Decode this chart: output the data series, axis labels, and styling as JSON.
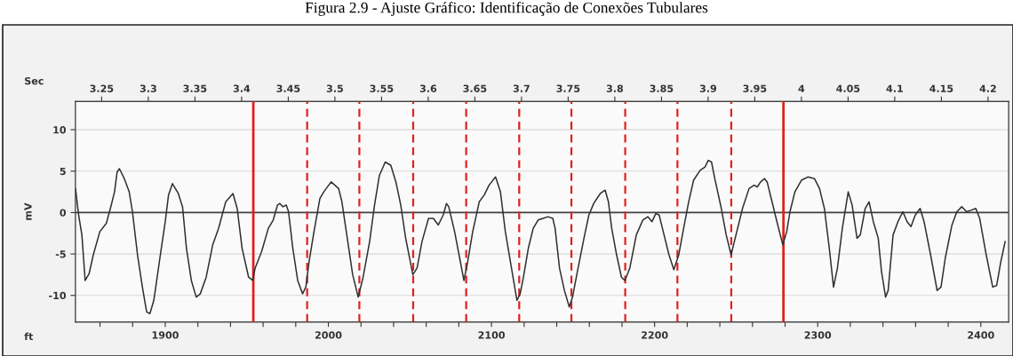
{
  "chart_data": {
    "type": "line",
    "title": "Figura 2.9 - Ajuste Gráfico: Identificação de Conexões Tubulares",
    "xlabel": "ft",
    "x2label": "Sec",
    "ylabel": "mV",
    "xlim": [
      1845,
      2417
    ],
    "ylim": [
      -13.2,
      13.4
    ],
    "xticks": [
      {
        "value": 1860,
        "label": null
      },
      {
        "value": 1880,
        "label": null
      },
      1900,
      {
        "value": 1920,
        "label": null
      },
      {
        "value": 1940,
        "label": null
      },
      {
        "value": 1960,
        "label": null
      },
      {
        "value": 1980,
        "label": null
      },
      2000,
      {
        "value": 2020,
        "label": null
      },
      {
        "value": 2040,
        "label": null
      },
      {
        "value": 2060,
        "label": null
      },
      {
        "value": 2080,
        "label": null
      },
      2100,
      {
        "value": 2120,
        "label": null
      },
      {
        "value": 2140,
        "label": null
      },
      {
        "value": 2160,
        "label": null
      },
      {
        "value": 2180,
        "label": null
      },
      2200,
      {
        "value": 2220,
        "label": null
      },
      {
        "value": 2240,
        "label": null
      },
      {
        "value": 2260,
        "label": null
      },
      {
        "value": 2280,
        "label": null
      },
      2300,
      {
        "value": 2320,
        "label": null
      },
      {
        "value": 2340,
        "label": null
      },
      {
        "value": 2360,
        "label": null
      },
      {
        "value": 2380,
        "label": null
      },
      2400
    ],
    "yticks": [
      -10,
      -5,
      0,
      5,
      10
    ],
    "x2lim": [
      3.222,
      4.222
    ],
    "x2ticks": [
      3.25,
      3.3,
      3.35,
      3.4,
      3.45,
      3.5,
      3.55,
      3.6,
      3.65,
      3.7,
      3.75,
      3.8,
      3.85,
      3.9,
      3.95,
      {
        "value": 4.0,
        "label": "4"
      },
      4.05,
      4.1,
      4.15,
      4.2
    ],
    "grid": true,
    "legend": false,
    "marker": "none",
    "line_style": "solid",
    "ref_lines": [
      {
        "axis": "y",
        "value": 0,
        "color": "#404040",
        "line_style": "solid"
      },
      {
        "axis": "x",
        "value": 1954,
        "color": "#e02020",
        "line_style": "solid"
      },
      {
        "axis": "x",
        "value": 1987,
        "color": "#e02020",
        "line_style": "dashed"
      },
      {
        "axis": "x",
        "value": 2019,
        "color": "#e02020",
        "line_style": "dashed"
      },
      {
        "axis": "x",
        "value": 2052,
        "color": "#e02020",
        "line_style": "dashed"
      },
      {
        "axis": "x",
        "value": 2084.5,
        "color": "#e02020",
        "line_style": "dashed"
      },
      {
        "axis": "x",
        "value": 2117,
        "color": "#e02020",
        "line_style": "dashed"
      },
      {
        "axis": "x",
        "value": 2149,
        "color": "#e02020",
        "line_style": "dashed"
      },
      {
        "axis": "x",
        "value": 2182,
        "color": "#e02020",
        "line_style": "dashed"
      },
      {
        "axis": "x",
        "value": 2214,
        "color": "#e02020",
        "line_style": "dashed"
      },
      {
        "axis": "x",
        "value": 2247,
        "color": "#e02020",
        "line_style": "dashed"
      },
      {
        "axis": "x",
        "value": 2279,
        "color": "#e02020",
        "line_style": "solid"
      }
    ],
    "series": [
      {
        "color": "#303030",
        "x": [
          1845,
          1846.9,
          1848.9,
          1850.9,
          1853.3,
          1855.9,
          1859.9,
          1863.9,
          1866.9,
          1868.9,
          1870.5,
          1871.9,
          1874.9,
          1877.9,
          1879.9,
          1883.0,
          1886.0,
          1888.6,
          1890.6,
          1893.0,
          1897.0,
          1900,
          1902.0,
          1904.4,
          1908.0,
          1910.6,
          1913.0,
          1916.0,
          1919.0,
          1921.5,
          1925.1,
          1929.1,
          1932.7,
          1937.1,
          1941.5,
          1944.1,
          1947.1,
          1951.1,
          1953.7,
          1955.1,
          1959.1,
          1963.2,
          1966.2,
          1968.8,
          1970.2,
          1972.2,
          1974.2,
          1975.6,
          1978.2,
          1981.2,
          1984.2,
          1986.2,
          1988.2,
          1991.2,
          1994.8,
          1997.2,
          2001.7,
          2006.3,
          2008.3,
          2011.3,
          2014.9,
          2018.3,
          2021.3,
          2025.3,
          2028.3,
          2031.3,
          2034.9,
          2038.3,
          2041.4,
          2044.4,
          2047.4,
          2051.8,
          2054.4,
          2057.4,
          2061.4,
          2064.4,
          2067.4,
          2070.4,
          2072.4,
          2073.8,
          2077.4,
          2080.5,
          2083.1,
          2085.1,
          2088.5,
          2092.5,
          2095.5,
          2098.5,
          2102.5,
          2105.5,
          2108.5,
          2112.6,
          2115.6,
          2117.6,
          2119.6,
          2122.6,
          2125.6,
          2128.6,
          2131.6,
          2134.6,
          2137.6,
          2139.0,
          2141.7,
          2144.7,
          2147.7,
          2149.7,
          2152.7,
          2156.7,
          2159.7,
          2162.7,
          2166.7,
          2169.7,
          2171.7,
          2173.7,
          2176.7,
          2179.7,
          2181.8,
          2184.8,
          2188.8,
          2192.8,
          2195.8,
          2198.4,
          2200.8,
          2202.8,
          2204.8,
          2208.8,
          2211.8,
          2214.8,
          2217.8,
          2220.9,
          2223.9,
          2227.9,
          2230.9,
          2232.9,
          2234.9,
          2236.9,
          2240.9,
          2243.9,
          2246.9,
          2249.9,
          2253.9,
          2257.9,
          2261.0,
          2263.0,
          2265.0,
          2267.4,
          2269.0,
          2272.0,
          2275.0,
          2278.6,
          2281.0,
          2283.0,
          2286.0,
          2290.0,
          2294.0,
          2298.0,
          2301.1,
          2304.1,
          2307.1,
          2309.7,
          2312.1,
          2315.1,
          2318.7,
          2321.1,
          2324.1,
          2326.1,
          2329.1,
          2331.5,
          2334.1,
          2337.1,
          2339.1,
          2341.6,
          2343.2,
          2346.2,
          2349.2,
          2352.2,
          2354.8,
          2357.2,
          2359.8,
          2362.8,
          2365.2,
          2369.2,
          2373.2,
          2375.6,
          2378.2,
          2382.3,
          2385.3,
          2388.3,
          2391.3,
          2394.3,
          2396.9,
          2399.3,
          2403.3,
          2407.3,
          2409.7,
          2412.3,
          2414.9
        ],
        "values": [
          2.9,
          -0.3,
          -2.7,
          -8.2,
          -7.4,
          -5.1,
          -2.3,
          -1.3,
          0.9,
          2.5,
          4.9,
          5.3,
          4.1,
          2.5,
          0.1,
          -5.1,
          -9.0,
          -12.0,
          -12.2,
          -10.6,
          -5.1,
          -1.1,
          2.1,
          3.5,
          2.3,
          0.7,
          -4.3,
          -8.2,
          -10.2,
          -9.8,
          -7.8,
          -3.9,
          -1.9,
          1.3,
          2.3,
          0.5,
          -4.3,
          -7.8,
          -8.2,
          -6.7,
          -4.7,
          -1.9,
          -0.9,
          0.9,
          1.1,
          0.7,
          0.9,
          0.1,
          -4.3,
          -8.2,
          -9.8,
          -9.0,
          -5.9,
          -2.3,
          1.7,
          2.5,
          3.7,
          2.9,
          1.3,
          -2.7,
          -7.5,
          -10.2,
          -7.8,
          -3.5,
          0.9,
          4.5,
          6.1,
          5.7,
          3.7,
          0.9,
          -3.1,
          -7.5,
          -6.7,
          -3.5,
          -0.7,
          -0.7,
          -1.5,
          -0.3,
          1.1,
          0.7,
          -2.3,
          -5.5,
          -8.2,
          -6.3,
          -2.3,
          1.3,
          2.1,
          3.3,
          4.3,
          2.5,
          -2.3,
          -7.1,
          -10.6,
          -9.8,
          -7.8,
          -4.3,
          -1.9,
          -0.9,
          -0.7,
          -0.5,
          -0.7,
          -1.9,
          -6.7,
          -9.4,
          -11.4,
          -10.2,
          -7.1,
          -3.1,
          -0.3,
          1.1,
          2.3,
          2.7,
          1.3,
          -1.9,
          -5.1,
          -7.8,
          -8.2,
          -6.7,
          -2.7,
          -0.9,
          -0.5,
          -1.1,
          -0.1,
          -0.3,
          -1.9,
          -5.1,
          -6.9,
          -5.1,
          -1.9,
          1.3,
          3.9,
          5.1,
          5.5,
          6.3,
          6.1,
          4.1,
          0.5,
          -2.7,
          -5.1,
          -2.7,
          0.5,
          2.9,
          3.3,
          3.1,
          3.7,
          4.1,
          3.7,
          1.3,
          -1.1,
          -3.9,
          -2.3,
          0.1,
          2.5,
          3.9,
          4.3,
          4.1,
          2.9,
          0.5,
          -4.3,
          -9.0,
          -6.7,
          -1.9,
          2.5,
          0.9,
          -3.1,
          -2.7,
          0.5,
          1.3,
          -1.1,
          -3.1,
          -7.1,
          -10.2,
          -9.4,
          -2.7,
          -1.1,
          0.1,
          -1.1,
          -1.7,
          -0.3,
          0.5,
          -1.1,
          -5.1,
          -9.4,
          -9.0,
          -5.5,
          -1.5,
          0.1,
          0.7,
          0.1,
          0.3,
          0.5,
          -0.7,
          -5.1,
          -9.0,
          -8.8,
          -5.9,
          -3.5
        ]
      }
    ]
  }
}
